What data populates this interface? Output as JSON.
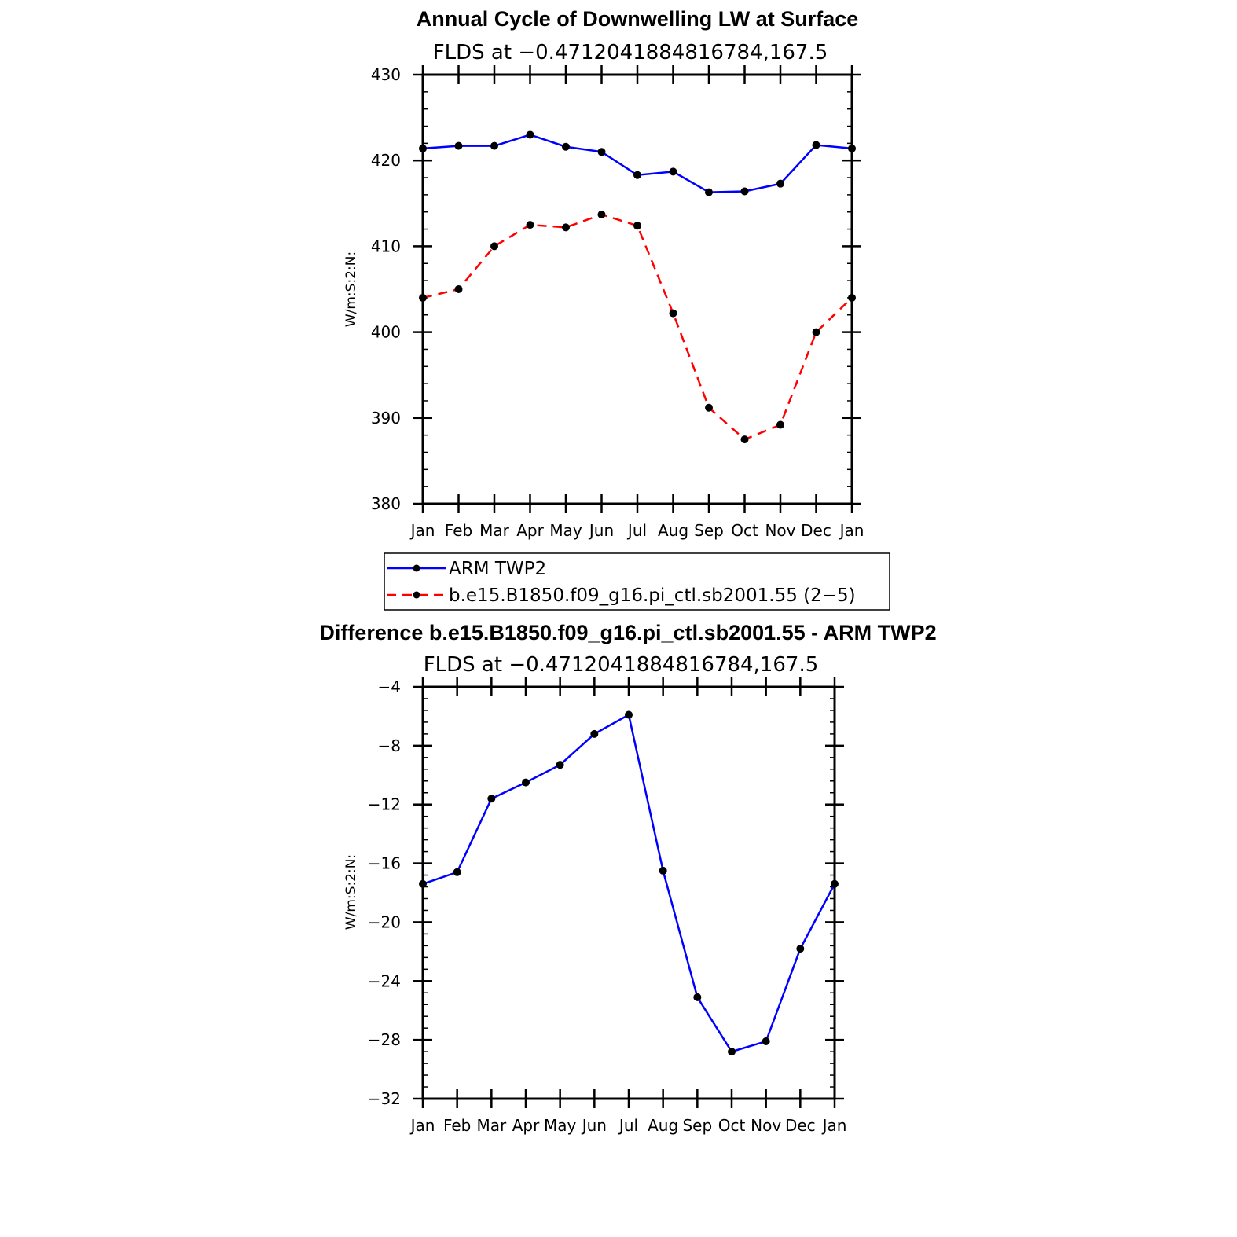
{
  "colors": {
    "obs": "#0000ff",
    "model": "#ff0000",
    "diff": "#0000ff",
    "marker": "#000000"
  },
  "chart_data": [
    {
      "type": "line",
      "title": "Annual Cycle of Downwelling LW at Surface",
      "subtitle": "FLDS at −0.4712041884816784,167.5",
      "ylabel": "W/m:S:2:N:",
      "xlabel": "",
      "categories": [
        "Jan",
        "Feb",
        "Mar",
        "Apr",
        "May",
        "Jun",
        "Jul",
        "Aug",
        "Sep",
        "Oct",
        "Nov",
        "Dec",
        "Jan"
      ],
      "ylim": [
        380,
        430
      ],
      "yticks": [
        "380",
        "390",
        "400",
        "410",
        "420",
        "430"
      ],
      "series": [
        {
          "name": "ARM TWP2",
          "style": "solid",
          "values": [
            421.4,
            421.7,
            421.7,
            423.0,
            421.6,
            421.0,
            418.3,
            418.7,
            416.3,
            416.4,
            417.3,
            421.8,
            421.4
          ]
        },
        {
          "name": "b.e15.B1850.f09_g16.pi_ctl.sb2001.55 (2−5)",
          "style": "dashed",
          "values": [
            404.0,
            405.0,
            410.0,
            412.5,
            412.2,
            413.7,
            412.4,
            402.2,
            391.2,
            387.5,
            389.2,
            400.0,
            404.0
          ]
        }
      ],
      "legend_position": "bottom"
    },
    {
      "type": "line",
      "title": "Difference b.e15.B1850.f09_g16.pi_ctl.sb2001.55 - ARM TWP2",
      "subtitle": "FLDS at −0.4712041884816784,167.5",
      "ylabel": "W/m:S:2:N:",
      "xlabel": "",
      "categories": [
        "Jan",
        "Feb",
        "Mar",
        "Apr",
        "May",
        "Jun",
        "Jul",
        "Aug",
        "Sep",
        "Oct",
        "Nov",
        "Dec",
        "Jan"
      ],
      "ylim": [
        -32,
        -4
      ],
      "yticks": [
        "−32",
        "−28",
        "−24",
        "−20",
        "−16",
        "−12",
        "−8",
        "−4"
      ],
      "series": [
        {
          "name": "Difference",
          "style": "solid",
          "values": [
            -17.4,
            -16.6,
            -11.6,
            -10.5,
            -9.3,
            -7.2,
            -5.9,
            -16.5,
            -25.1,
            -28.8,
            -28.1,
            -21.8,
            -17.4
          ]
        }
      ]
    }
  ]
}
